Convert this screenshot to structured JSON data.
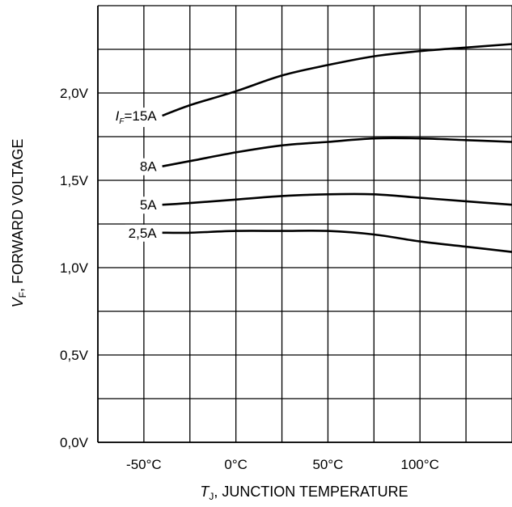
{
  "chart_data": {
    "type": "line",
    "xlabel_var": "T",
    "xlabel_sub": "J",
    "xlabel_rest": ", JUNCTION TEMPERATURE",
    "ylabel_var": "V",
    "ylabel_sub": "F",
    "ylabel_rest": ", FORWARD VOLTAGE",
    "xlim": [
      -75,
      150
    ],
    "ylim": [
      0,
      2.5
    ],
    "grid": true,
    "x_ticks": [
      {
        "value": -50,
        "label": "-50°C"
      },
      {
        "value": 0,
        "label": "0°C"
      },
      {
        "value": 50,
        "label": "50°C"
      },
      {
        "value": 100,
        "label": "100°C"
      }
    ],
    "y_ticks": [
      {
        "value": 0,
        "label": "0,0V"
      },
      {
        "value": 0.5,
        "label": "0,5V"
      },
      {
        "value": 1.0,
        "label": "1,0V"
      },
      {
        "value": 1.5,
        "label": "1,5V"
      },
      {
        "value": 2.0,
        "label": "2,0V"
      }
    ],
    "series": [
      {
        "label_prefix": "I",
        "label_sub": "F",
        "label_value": "=15A",
        "x": [
          -40,
          -25,
          0,
          25,
          50,
          75,
          100,
          125,
          150
        ],
        "y": [
          1.87,
          1.93,
          2.01,
          2.1,
          2.16,
          2.21,
          2.24,
          2.26,
          2.28
        ]
      },
      {
        "label_value": "8A",
        "x": [
          -40,
          -25,
          0,
          25,
          50,
          75,
          100,
          125,
          150
        ],
        "y": [
          1.58,
          1.61,
          1.66,
          1.7,
          1.72,
          1.74,
          1.74,
          1.73,
          1.72
        ]
      },
      {
        "label_value": "5A",
        "x": [
          -40,
          -25,
          0,
          25,
          50,
          75,
          100,
          125,
          150
        ],
        "y": [
          1.36,
          1.37,
          1.39,
          1.41,
          1.42,
          1.42,
          1.4,
          1.38,
          1.36
        ]
      },
      {
        "label_value": "2,5A",
        "x": [
          -40,
          -25,
          0,
          25,
          50,
          75,
          100,
          125,
          150
        ],
        "y": [
          1.2,
          1.2,
          1.21,
          1.21,
          1.21,
          1.19,
          1.15,
          1.12,
          1.09
        ]
      }
    ]
  }
}
